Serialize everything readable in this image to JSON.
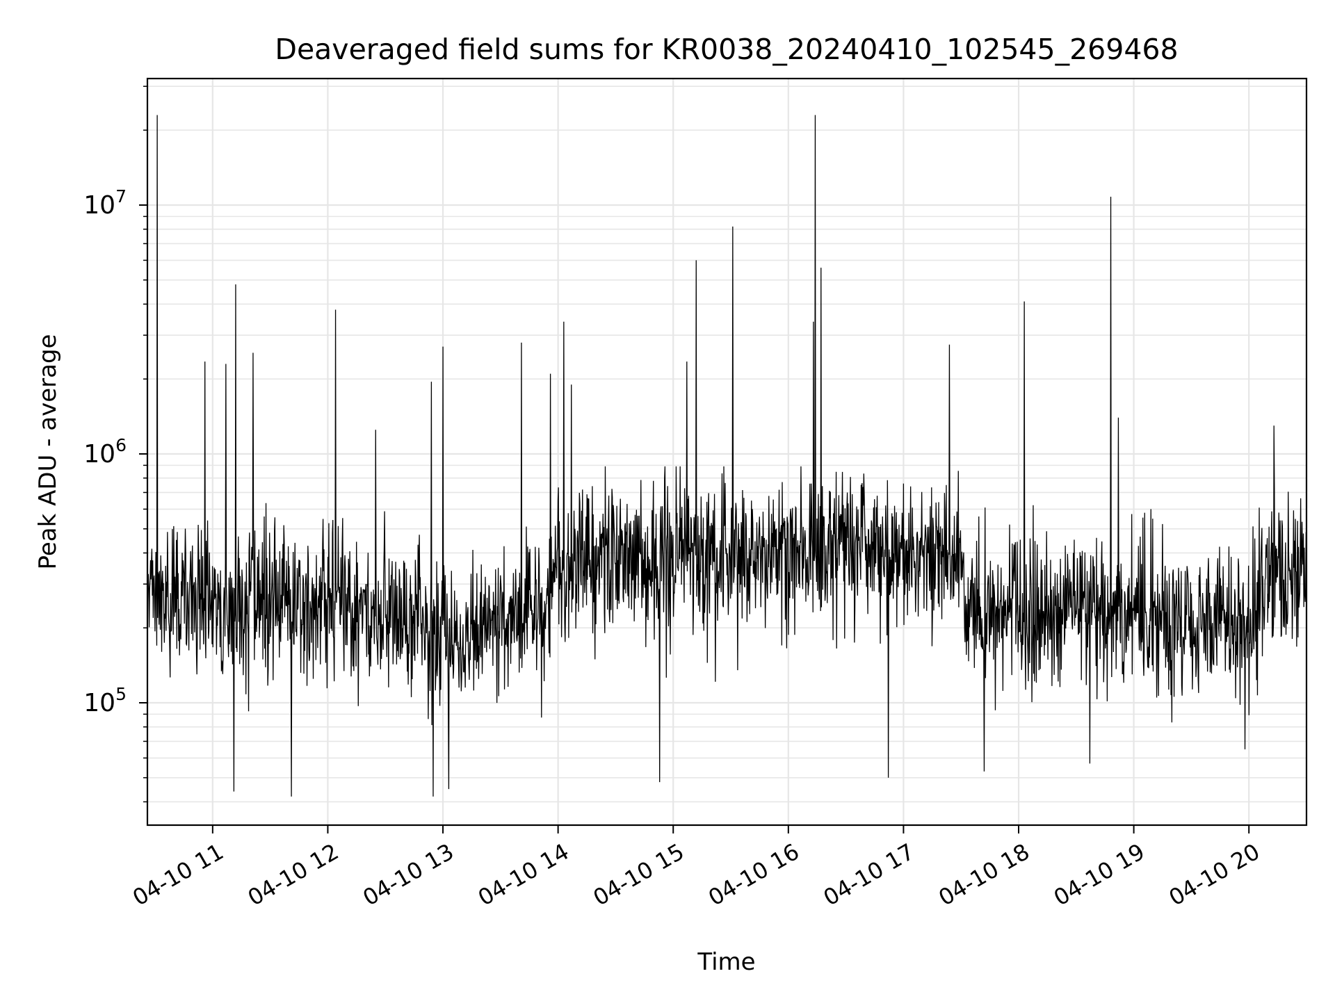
{
  "chart_data": {
    "type": "line",
    "title": "Deaveraged field sums for KR0038_20240410_102545_269468",
    "xlabel": "Time",
    "ylabel": "Peak ADU - average",
    "yscale": "log",
    "ylim": [
      33000,
      30000000
    ],
    "xlim": [
      "2024-04-10 10:26",
      "2024-04-10 20:30"
    ],
    "grid": true,
    "line_color": "#000000",
    "grid_color": "#e6e6e6",
    "x_tick_labels": [
      "04-10 11",
      "04-10 12",
      "04-10 13",
      "04-10 14",
      "04-10 15",
      "04-10 16",
      "04-10 17",
      "04-10 18",
      "04-10 19",
      "04-10 20"
    ],
    "y_ticks": [
      {
        "base": "10",
        "exp": "5",
        "value": 100000
      },
      {
        "base": "10",
        "exp": "6",
        "value": 1000000
      },
      {
        "base": "10",
        "exp": "7",
        "value": 10000000
      }
    ],
    "baseline": [
      {
        "t": "2024-04-10 10:26",
        "y": 270000
      },
      {
        "t": "2024-04-10 11:00",
        "y": 260000
      },
      {
        "t": "2024-04-10 12:00",
        "y": 250000
      },
      {
        "t": "2024-04-10 12:30",
        "y": 220000
      },
      {
        "t": "2024-04-10 13:00",
        "y": 190000
      },
      {
        "t": "2024-04-10 13:30",
        "y": 210000
      },
      {
        "t": "2024-04-10 13:55",
        "y": 240000
      },
      {
        "t": "2024-04-10 14:00",
        "y": 360000
      },
      {
        "t": "2024-04-10 15:00",
        "y": 370000
      },
      {
        "t": "2024-04-10 15:45",
        "y": 400000
      },
      {
        "t": "2024-04-10 16:30",
        "y": 430000
      },
      {
        "t": "2024-04-10 17:00",
        "y": 380000
      },
      {
        "t": "2024-04-10 17:30",
        "y": 370000
      },
      {
        "t": "2024-04-10 17:33",
        "y": 230000
      },
      {
        "t": "2024-04-10 18:30",
        "y": 230000
      },
      {
        "t": "2024-04-10 19:30",
        "y": 200000
      },
      {
        "t": "2024-04-10 20:00",
        "y": 200000
      },
      {
        "t": "2024-04-10 20:10",
        "y": 330000
      },
      {
        "t": "2024-04-10 20:30",
        "y": 370000
      }
    ],
    "spikes": [
      {
        "t": "2024-04-10 10:31",
        "y": 23000000
      },
      {
        "t": "2024-04-10 11:12",
        "y": 4800000
      },
      {
        "t": "2024-04-10 10:56",
        "y": 2350000
      },
      {
        "t": "2024-04-10 11:07",
        "y": 2300000
      },
      {
        "t": "2024-04-10 11:21",
        "y": 2550000
      },
      {
        "t": "2024-04-10 12:04",
        "y": 3800000
      },
      {
        "t": "2024-04-10 12:25",
        "y": 1250000
      },
      {
        "t": "2024-04-10 12:54",
        "y": 1950000
      },
      {
        "t": "2024-04-10 13:00",
        "y": 2700000
      },
      {
        "t": "2024-04-10 13:41",
        "y": 2800000
      },
      {
        "t": "2024-04-10 13:56",
        "y": 2100000
      },
      {
        "t": "2024-04-10 14:03",
        "y": 3400000
      },
      {
        "t": "2024-04-10 14:07",
        "y": 1900000
      },
      {
        "t": "2024-04-10 15:07",
        "y": 2350000
      },
      {
        "t": "2024-04-10 15:12",
        "y": 6000000
      },
      {
        "t": "2024-04-10 15:31",
        "y": 8200000
      },
      {
        "t": "2024-04-10 16:13",
        "y": 3400000
      },
      {
        "t": "2024-04-10 16:14",
        "y": 23000000
      },
      {
        "t": "2024-04-10 16:17",
        "y": 5600000
      },
      {
        "t": "2024-04-10 17:24",
        "y": 2750000
      },
      {
        "t": "2024-04-10 18:03",
        "y": 4100000
      },
      {
        "t": "2024-04-10 18:48",
        "y": 10800000
      },
      {
        "t": "2024-04-10 18:52",
        "y": 1400000
      },
      {
        "t": "2024-04-10 20:13",
        "y": 1300000
      }
    ],
    "dips": [
      {
        "t": "2024-04-10 11:11",
        "y": 44000
      },
      {
        "t": "2024-04-10 11:41",
        "y": 42000
      },
      {
        "t": "2024-04-10 12:55",
        "y": 42000
      },
      {
        "t": "2024-04-10 13:03",
        "y": 45000
      },
      {
        "t": "2024-04-10 14:53",
        "y": 48000
      },
      {
        "t": "2024-04-10 16:52",
        "y": 50000
      },
      {
        "t": "2024-04-10 17:42",
        "y": 53000
      },
      {
        "t": "2024-04-10 18:37",
        "y": 57000
      },
      {
        "t": "2024-04-10 19:58",
        "y": 65000
      }
    ]
  }
}
